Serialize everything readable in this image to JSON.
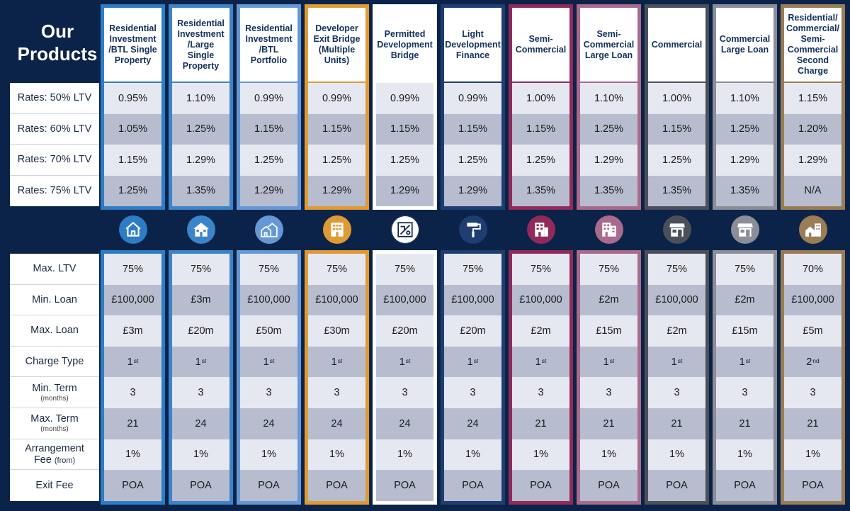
{
  "title": {
    "line1": "Our",
    "line2": "Products"
  },
  "rate_labels": [
    "Rates: 50% LTV",
    "Rates: 60% LTV",
    "Rates: 70% LTV",
    "Rates: 75% LTV"
  ],
  "detail_labels": [
    {
      "main": "Max. LTV",
      "sub": ""
    },
    {
      "main": "Min. Loan",
      "sub": ""
    },
    {
      "main": "Max. Loan",
      "sub": ""
    },
    {
      "main": "Charge Type",
      "sub": ""
    },
    {
      "main": "Min. Term",
      "sub": "(months)"
    },
    {
      "main": "Max. Term",
      "sub": "(months)"
    },
    {
      "main": "Arrangement",
      "sub": "Fee",
      "sub2": "(from)"
    },
    {
      "main": "Exit Fee",
      "sub": ""
    }
  ],
  "products": [
    {
      "name": "Residential Investment /BTL Single Property",
      "color": "#2d7dc6",
      "icon": "house-icon",
      "rates": [
        "0.95%",
        "1.05%",
        "1.15%",
        "1.25%"
      ],
      "max_ltv": "75%",
      "min_loan": "£100,000",
      "max_loan": "£3m",
      "charge": "1",
      "charge_sup": "st",
      "min_term": "3",
      "max_term": "21",
      "fee": "1%",
      "exit_fee": "POA"
    },
    {
      "name": "Residential Investment /Large Single Property",
      "color": "#3b84c9",
      "icon": "large-house-icon",
      "rates": [
        "1.10%",
        "1.25%",
        "1.29%",
        "1.35%"
      ],
      "max_ltv": "75%",
      "min_loan": "£3m",
      "max_loan": "£20m",
      "charge": "1",
      "charge_sup": "st",
      "min_term": "3",
      "max_term": "24",
      "fee": "1%",
      "exit_fee": "POA"
    },
    {
      "name": "Residential Investment /BTL Portfolio",
      "color": "#6598d6",
      "icon": "portfolio-houses-icon",
      "rates": [
        "0.99%",
        "1.15%",
        "1.25%",
        "1.29%"
      ],
      "max_ltv": "75%",
      "min_loan": "£100,000",
      "max_loan": "£50m",
      "charge": "1",
      "charge_sup": "st",
      "min_term": "3",
      "max_term": "24",
      "fee": "1%",
      "exit_fee": "POA"
    },
    {
      "name": "Developer Exit Bridge (Multiple Units)",
      "color": "#e09a33",
      "icon": "apartment-block-icon",
      "rates": [
        "0.99%",
        "1.15%",
        "1.25%",
        "1.29%"
      ],
      "max_ltv": "75%",
      "min_loan": "£100,000",
      "max_loan": "£30m",
      "charge": "1",
      "charge_sup": "st",
      "min_term": "3",
      "max_term": "24",
      "fee": "1%",
      "exit_fee": "POA"
    },
    {
      "name": "Permitted Development Bridge",
      "color": "#ffffff",
      "icon": "blueprint-icon",
      "rates": [
        "0.99%",
        "1.15%",
        "1.25%",
        "1.29%"
      ],
      "max_ltv": "75%",
      "min_loan": "£100,000",
      "max_loan": "£20m",
      "charge": "1",
      "charge_sup": "st",
      "min_term": "3",
      "max_term": "24",
      "fee": "1%",
      "exit_fee": "POA"
    },
    {
      "name": "Light Development Finance",
      "color": "#1d3d73",
      "icon": "paint-roller-icon",
      "rates": [
        "0.99%",
        "1.15%",
        "1.25%",
        "1.29%"
      ],
      "max_ltv": "75%",
      "min_loan": "£100,000",
      "max_loan": "£20m",
      "charge": "1",
      "charge_sup": "st",
      "min_term": "3",
      "max_term": "24",
      "fee": "1%",
      "exit_fee": "POA"
    },
    {
      "name": "Semi- Commercial",
      "color": "#8f2a5a",
      "icon": "office-building-icon",
      "rates": [
        "1.00%",
        "1.15%",
        "1.25%",
        "1.35%"
      ],
      "max_ltv": "75%",
      "min_loan": "£100,000",
      "max_loan": "£2m",
      "charge": "1",
      "charge_sup": "st",
      "min_term": "3",
      "max_term": "21",
      "fee": "1%",
      "exit_fee": "POA"
    },
    {
      "name": "Semi- Commercial Large Loan",
      "color": "#a96a8c",
      "icon": "large-office-building-icon",
      "rates": [
        "1.10%",
        "1.25%",
        "1.29%",
        "1.35%"
      ],
      "max_ltv": "75%",
      "min_loan": "£2m",
      "max_loan": "£15m",
      "charge": "1",
      "charge_sup": "st",
      "min_term": "3",
      "max_term": "21",
      "fee": "1%",
      "exit_fee": "POA"
    },
    {
      "name": "Commercial",
      "color": "#4a4f5a",
      "icon": "shopfront-icon",
      "rates": [
        "1.00%",
        "1.15%",
        "1.25%",
        "1.35%"
      ],
      "max_ltv": "75%",
      "min_loan": "£100,000",
      "max_loan": "£2m",
      "charge": "1",
      "charge_sup": "st",
      "min_term": "3",
      "max_term": "21",
      "fee": "1%",
      "exit_fee": "POA"
    },
    {
      "name": "Commercial Large Loan",
      "color": "#8b8e96",
      "icon": "large-shopfront-icon",
      "rates": [
        "1.10%",
        "1.25%",
        "1.29%",
        "1.35%"
      ],
      "max_ltv": "75%",
      "min_loan": "£2m",
      "max_loan": "£15m",
      "charge": "1",
      "charge_sup": "st",
      "min_term": "3",
      "max_term": "21",
      "fee": "1%",
      "exit_fee": "POA"
    },
    {
      "name": "Residential/ Commercial/ Semi- Commercial Second Charge",
      "color": "#9a7c55",
      "icon": "mixed-buildings-icon",
      "rates": [
        "1.15%",
        "1.20%",
        "1.29%",
        "N/A"
      ],
      "max_ltv": "70%",
      "min_loan": "£100,000",
      "max_loan": "£5m",
      "charge": "2",
      "charge_sup": "nd",
      "min_term": "3",
      "max_term": "21",
      "fee": "1%",
      "exit_fee": "POA"
    }
  ]
}
